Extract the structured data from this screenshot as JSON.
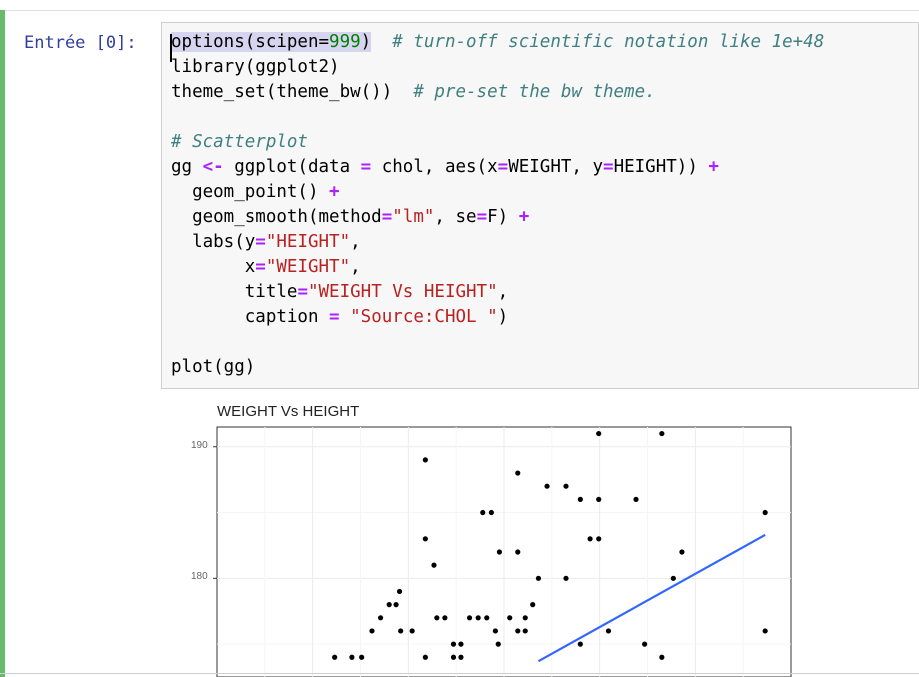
{
  "cell": {
    "prompt": "Entrée [0]:",
    "code_lines": [
      [
        {
          "t": "options(scipen=",
          "c": "hl"
        },
        {
          "t": "999",
          "c": "num hl"
        },
        {
          "t": ")",
          "c": "hl"
        },
        {
          "t": "  ",
          "c": ""
        },
        {
          "t": "# turn-off scientific notation like 1e+48",
          "c": "cmt"
        }
      ],
      [
        {
          "t": "library(ggplot2)",
          "c": ""
        }
      ],
      [
        {
          "t": "theme_set(theme_bw())  ",
          "c": ""
        },
        {
          "t": "# pre-set the bw theme.",
          "c": "cmt"
        }
      ],
      [
        {
          "t": "",
          "c": ""
        }
      ],
      [
        {
          "t": "# Scatterplot",
          "c": "cmt"
        }
      ],
      [
        {
          "t": "gg ",
          "c": ""
        },
        {
          "t": "<-",
          "c": "op"
        },
        {
          "t": " ggplot(data ",
          "c": ""
        },
        {
          "t": "=",
          "c": "op"
        },
        {
          "t": " chol, aes(x",
          "c": ""
        },
        {
          "t": "=",
          "c": "op"
        },
        {
          "t": "WEIGHT, y",
          "c": ""
        },
        {
          "t": "=",
          "c": "op"
        },
        {
          "t": "HEIGHT)) ",
          "c": ""
        },
        {
          "t": "+",
          "c": "op"
        }
      ],
      [
        {
          "t": "  geom_point() ",
          "c": ""
        },
        {
          "t": "+",
          "c": "op"
        }
      ],
      [
        {
          "t": "  geom_smooth(method",
          "c": ""
        },
        {
          "t": "=",
          "c": "op"
        },
        {
          "t": "\"lm\"",
          "c": "str"
        },
        {
          "t": ", se",
          "c": ""
        },
        {
          "t": "=",
          "c": "op"
        },
        {
          "t": "F) ",
          "c": ""
        },
        {
          "t": "+",
          "c": "op"
        }
      ],
      [
        {
          "t": "  labs(y",
          "c": ""
        },
        {
          "t": "=",
          "c": "op"
        },
        {
          "t": "\"HEIGHT\"",
          "c": "str"
        },
        {
          "t": ",",
          "c": ""
        }
      ],
      [
        {
          "t": "       x",
          "c": ""
        },
        {
          "t": "=",
          "c": "op"
        },
        {
          "t": "\"WEIGHT\"",
          "c": "str"
        },
        {
          "t": ",",
          "c": ""
        }
      ],
      [
        {
          "t": "       title",
          "c": ""
        },
        {
          "t": "=",
          "c": "op"
        },
        {
          "t": "\"WEIGHT Vs HEIGHT\"",
          "c": "str"
        },
        {
          "t": ",",
          "c": ""
        }
      ],
      [
        {
          "t": "       caption ",
          "c": ""
        },
        {
          "t": "=",
          "c": "op"
        },
        {
          "t": " ",
          "c": ""
        },
        {
          "t": "\"Source:CHOL \"",
          "c": "str"
        },
        {
          "t": ")",
          "c": ""
        }
      ],
      [
        {
          "t": "",
          "c": ""
        }
      ],
      [
        {
          "t": "plot(gg)",
          "c": ""
        }
      ]
    ]
  },
  "output": {
    "chart_data": {
      "type": "scatter",
      "title": "WEIGHT Vs HEIGHT",
      "ytick_labels": [
        "190",
        "180"
      ],
      "ylim_visible": [
        172.5,
        191.5
      ],
      "xlim_visible": [
        0,
        1
      ],
      "points": [
        [
          0.205,
          174
        ],
        [
          0.235,
          174
        ],
        [
          0.252,
          174
        ],
        [
          0.27,
          176
        ],
        [
          0.285,
          177
        ],
        [
          0.3,
          178
        ],
        [
          0.312,
          178
        ],
        [
          0.318,
          179
        ],
        [
          0.32,
          176
        ],
        [
          0.34,
          176
        ],
        [
          0.363,
          174
        ],
        [
          0.363,
          183
        ],
        [
          0.363,
          189
        ],
        [
          0.378,
          181
        ],
        [
          0.383,
          177
        ],
        [
          0.397,
          177
        ],
        [
          0.412,
          175
        ],
        [
          0.412,
          174
        ],
        [
          0.425,
          174
        ],
        [
          0.425,
          175
        ],
        [
          0.44,
          177
        ],
        [
          0.455,
          177
        ],
        [
          0.463,
          185
        ],
        [
          0.47,
          177
        ],
        [
          0.478,
          185
        ],
        [
          0.485,
          176
        ],
        [
          0.49,
          175
        ],
        [
          0.492,
          182
        ],
        [
          0.51,
          177
        ],
        [
          0.524,
          182
        ],
        [
          0.524,
          188
        ],
        [
          0.524,
          176
        ],
        [
          0.537,
          177
        ],
        [
          0.537,
          176
        ],
        [
          0.55,
          178
        ],
        [
          0.56,
          180
        ],
        [
          0.575,
          187
        ],
        [
          0.608,
          180
        ],
        [
          0.608,
          187
        ],
        [
          0.633,
          186
        ],
        [
          0.633,
          175
        ],
        [
          0.65,
          183
        ],
        [
          0.665,
          191
        ],
        [
          0.665,
          186
        ],
        [
          0.665,
          183
        ],
        [
          0.682,
          176
        ],
        [
          0.73,
          186
        ],
        [
          0.745,
          175
        ],
        [
          0.775,
          174
        ],
        [
          0.775,
          191
        ],
        [
          0.795,
          180
        ],
        [
          0.81,
          182
        ],
        [
          0.955,
          185
        ],
        [
          0.955,
          176
        ]
      ],
      "trend_line": {
        "color": "#3366ff",
        "from": [
          0.56,
          173.7
        ],
        "to": [
          0.955,
          183.3
        ]
      }
    }
  }
}
